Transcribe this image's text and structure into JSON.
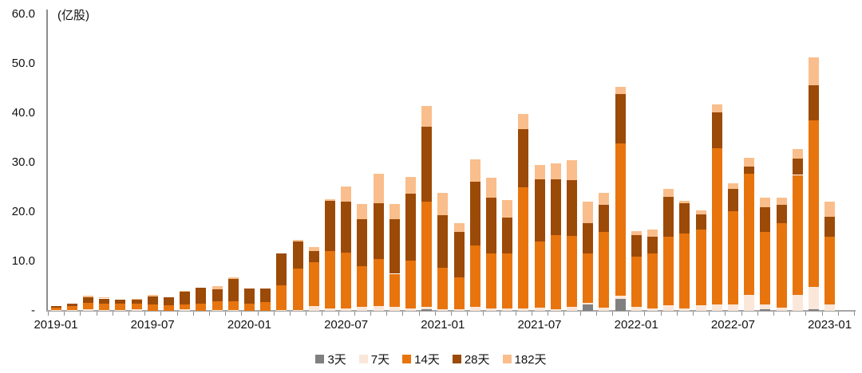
{
  "chart_data": {
    "type": "bar",
    "stacked": true,
    "unit_label": "(亿股)",
    "ylabel": "亿股",
    "ylim": [
      0,
      60
    ],
    "grid": false,
    "legend_position": "bottom",
    "y_ticks": [
      {
        "label": "60.0",
        "value": 60
      },
      {
        "label": "50.0",
        "value": 50
      },
      {
        "label": "40.0",
        "value": 40
      },
      {
        "label": "30.0",
        "value": 30
      },
      {
        "label": "20.0",
        "value": 20
      },
      {
        "label": "10.0",
        "value": 10
      },
      {
        "label": "-",
        "value": 0
      }
    ],
    "x_tick_labels": [
      "2019-01",
      "2019-07",
      "2020-01",
      "2020-07",
      "2021-01",
      "2021-07",
      "2022-01",
      "2022-07",
      "2023-01"
    ],
    "categories": [
      "2019-01",
      "2019-02",
      "2019-03",
      "2019-04",
      "2019-05",
      "2019-06",
      "2019-07",
      "2019-08",
      "2019-09",
      "2019-10",
      "2019-11",
      "2019-12",
      "2020-01",
      "2020-02",
      "2020-03",
      "2020-04",
      "2020-05",
      "2020-06",
      "2020-07",
      "2020-08",
      "2020-09",
      "2020-10",
      "2020-11",
      "2020-12",
      "2021-01",
      "2021-02",
      "2021-03",
      "2021-04",
      "2021-05",
      "2021-06",
      "2021-07",
      "2021-08",
      "2021-09",
      "2021-10",
      "2021-11",
      "2021-12",
      "2022-01",
      "2022-02",
      "2022-03",
      "2022-04",
      "2022-05",
      "2022-06",
      "2022-07",
      "2022-08",
      "2022-09",
      "2022-10",
      "2022-11",
      "2022-12",
      "2023-01"
    ],
    "series": [
      {
        "name": "3天",
        "color": "#808080",
        "values": [
          0,
          0,
          0,
          0,
          0,
          0,
          0,
          0,
          0,
          0,
          0,
          0,
          0,
          0,
          0,
          0,
          0,
          0,
          0,
          0,
          0,
          0,
          0,
          0.3,
          0,
          0,
          0,
          0,
          0,
          0,
          0,
          0,
          0,
          1.3,
          0,
          2.4,
          0,
          0,
          0,
          0,
          0,
          0,
          0,
          0,
          0.4,
          0,
          0,
          0.3,
          0
        ]
      },
      {
        "name": "7天",
        "color": "#FAE7D9",
        "values": [
          0.1,
          0.1,
          0.3,
          0.2,
          0.2,
          0.3,
          0,
          0,
          0.4,
          0,
          0.2,
          0.2,
          0,
          0,
          0.2,
          0.2,
          0.9,
          0.5,
          0.5,
          0.8,
          1.0,
          0.8,
          0.5,
          0.5,
          0.3,
          0.3,
          0.8,
          0.5,
          0.5,
          0.5,
          0.7,
          0.3,
          0.8,
          0.3,
          0.6,
          0.7,
          0.8,
          0.5,
          1.1,
          0.5,
          1.1,
          1.3,
          1.3,
          3.2,
          0.9,
          0.7,
          3.2,
          4.5,
          1.3
        ]
      },
      {
        "name": "14天",
        "color": "#E8740E",
        "values": [
          0.6,
          0.8,
          1.3,
          1.3,
          1.2,
          1.2,
          1.3,
          1.2,
          0.9,
          1.5,
          1.7,
          1.8,
          1.5,
          1.8,
          5.0,
          8.4,
          8.9,
          11.6,
          11.3,
          8.3,
          9.5,
          6.7,
          9.7,
          21.3,
          8.4,
          6.4,
          12.4,
          11.1,
          11.1,
          24.5,
          13.4,
          15.0,
          14.3,
          10.0,
          15.3,
          30.8,
          10.2,
          11.1,
          13.9,
          15.1,
          15.3,
          31.6,
          18.9,
          24.5,
          14.6,
          17.0,
          24.3,
          33.8,
          13.7
        ]
      },
      {
        "name": "28天",
        "color": "#9C4A08",
        "values": [
          0.3,
          0.6,
          1.2,
          1.0,
          0.9,
          0.7,
          1.6,
          1.5,
          2.5,
          3.1,
          2.5,
          4.4,
          3.0,
          2.7,
          6.4,
          5.5,
          2.3,
          10.2,
          10.3,
          9.4,
          11.3,
          11.1,
          13.5,
          15.1,
          10.7,
          9.2,
          12.9,
          11.3,
          7.3,
          11.8,
          12.5,
          11.3,
          11.3,
          6.1,
          5.6,
          9.9,
          4.3,
          3.4,
          8.1,
          6.2,
          3.1,
          7.3,
          4.4,
          1.5,
          5.1,
          3.8,
          3.3,
          7.1,
          4.1
        ]
      },
      {
        "name": "182天",
        "color": "#F9BE8C",
        "values": [
          0,
          0,
          0.2,
          0.2,
          0,
          0.2,
          0.4,
          0,
          0.2,
          0,
          0.6,
          0.3,
          0,
          0,
          0,
          0.3,
          0.8,
          0.3,
          3.1,
          3.1,
          5.9,
          3.0,
          3.4,
          4.3,
          4.5,
          1.8,
          4.6,
          4.0,
          3.6,
          3.1,
          2.9,
          3.2,
          4.1,
          4.4,
          2.4,
          1.6,
          0.8,
          1.4,
          1.6,
          0.5,
          0.8,
          1.6,
          1.2,
          1.7,
          1.9,
          1.4,
          2.0,
          5.6,
          3.0
        ]
      }
    ]
  }
}
